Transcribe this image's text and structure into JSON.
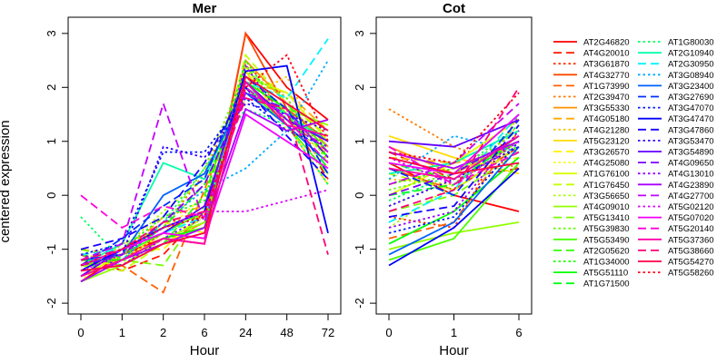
{
  "chart_data": {
    "type": "line",
    "ylabel": "centered expression",
    "panels": [
      {
        "title": "Mer",
        "xlabel": "Hour",
        "x": [
          "0",
          "1",
          "2",
          "6",
          "24",
          "48",
          "72"
        ],
        "ylim": [
          -2.2,
          3.3
        ],
        "yticks": [
          -2,
          -1,
          0,
          1,
          2,
          3
        ]
      },
      {
        "title": "Cot",
        "xlabel": "Hour",
        "x": [
          "0",
          "1",
          "6"
        ],
        "ylim": [
          -2.2,
          3.3
        ],
        "yticks": [
          -2,
          -1,
          0,
          1,
          2,
          3
        ]
      }
    ],
    "legend_position": "right",
    "series": [
      {
        "name": "AT2G46820",
        "color": "#FF0000",
        "dash": "solid",
        "mer": [
          -1.6,
          -1.1,
          -0.8,
          -0.9,
          3.0,
          2.0,
          1.4
        ],
        "cot": [
          0.6,
          0.0,
          -0.3
        ]
      },
      {
        "name": "AT4G20010",
        "color": "#FF1800",
        "dash": "dashed",
        "mer": [
          -1.1,
          -1.4,
          -1.1,
          -0.3,
          2.2,
          1.5,
          0.3
        ],
        "cot": [
          0.8,
          0.3,
          0.5
        ]
      },
      {
        "name": "AT3G61870",
        "color": "#FF3000",
        "dash": "dotted",
        "mer": [
          -1.3,
          -1.1,
          -0.5,
          -0.4,
          2.4,
          1.8,
          0.7
        ],
        "cot": [
          -0.4,
          -0.6,
          1.5
        ]
      },
      {
        "name": "AT4G32770",
        "color": "#FF4900",
        "dash": "solid",
        "mer": [
          -1.5,
          -1.2,
          -0.7,
          -0.8,
          3.0,
          1.6,
          1.0
        ],
        "cot": [
          0.5,
          0.1,
          0.9
        ]
      },
      {
        "name": "AT1G73990",
        "color": "#FF6100",
        "dash": "dashed",
        "mer": [
          -1.2,
          -1.3,
          -1.8,
          0.1,
          2.0,
          1.4,
          0.8
        ],
        "cot": [
          -0.8,
          -0.5,
          1.2
        ]
      },
      {
        "name": "AT2G39470",
        "color": "#FF7900",
        "dash": "dotted",
        "mer": [
          -1.4,
          -1.0,
          -0.6,
          0.4,
          2.2,
          1.6,
          0.4
        ],
        "cot": [
          1.6,
          0.9,
          0.5
        ]
      },
      {
        "name": "AT3G55330",
        "color": "#FF9200",
        "dash": "solid",
        "mer": [
          -1.3,
          -1.2,
          -0.9,
          -0.5,
          2.5,
          1.7,
          0.9
        ],
        "cot": [
          0.9,
          0.4,
          1.0
        ]
      },
      {
        "name": "AT4G05180",
        "color": "#FFAA00",
        "dash": "dashed",
        "mer": [
          -1.0,
          -1.1,
          -0.4,
          -0.2,
          2.1,
          1.9,
          1.2
        ],
        "cot": [
          0.7,
          0.6,
          0.8
        ]
      },
      {
        "name": "AT4G21280",
        "color": "#FFC200",
        "dash": "dotted",
        "mer": [
          -1.6,
          -0.9,
          -0.6,
          0.2,
          1.8,
          2.2,
          0.6
        ],
        "cot": [
          0.3,
          0.2,
          1.3
        ]
      },
      {
        "name": "AT5G23120",
        "color": "#FFDB00",
        "dash": "solid",
        "mer": [
          -1.2,
          -1.3,
          -0.8,
          -0.6,
          2.3,
          1.3,
          0.2
        ],
        "cot": [
          1.1,
          0.7,
          0.4
        ]
      },
      {
        "name": "AT3G26570",
        "color": "#FFF300",
        "dash": "dashed",
        "mer": [
          -1.4,
          -1.0,
          -1.0,
          -0.3,
          2.0,
          1.5,
          0.5
        ],
        "cot": [
          0.2,
          0.5,
          0.7
        ]
      },
      {
        "name": "AT4G25080",
        "color": "#F3FF00",
        "dash": "dotted",
        "mer": [
          -1.1,
          -1.2,
          -0.7,
          0.0,
          2.4,
          1.2,
          0.8
        ],
        "cot": [
          -0.2,
          0.3,
          1.1
        ]
      },
      {
        "name": "AT1G76100",
        "color": "#DBFF00",
        "dash": "solid",
        "mer": [
          -1.5,
          -1.1,
          -0.5,
          -0.7,
          2.2,
          1.9,
          1.0
        ],
        "cot": [
          0.0,
          0.6,
          1.4
        ]
      },
      {
        "name": "AT1G76450",
        "color": "#C2FF00",
        "dash": "dashed",
        "mer": [
          -1.3,
          -1.4,
          -0.9,
          -0.4,
          2.6,
          1.7,
          1.1
        ],
        "cot": [
          0.4,
          0.1,
          0.9
        ]
      },
      {
        "name": "AT3G56650",
        "color": "#AAFF00",
        "dash": "dotted",
        "mer": [
          -1.2,
          -1.0,
          -0.3,
          0.3,
          1.9,
          1.4,
          0.7
        ],
        "cot": [
          -0.6,
          0.2,
          1.0
        ]
      },
      {
        "name": "AT4G09010",
        "color": "#92FF00",
        "dash": "solid",
        "mer": [
          -1.6,
          -1.3,
          -0.8,
          -0.5,
          2.1,
          1.6,
          1.3
        ],
        "cot": [
          -1.0,
          -0.7,
          -0.5
        ]
      },
      {
        "name": "AT5G13410",
        "color": "#79FF00",
        "dash": "dashed",
        "mer": [
          -1.0,
          -1.2,
          -1.3,
          -0.2,
          2.4,
          1.5,
          0.9
        ],
        "cot": [
          -0.3,
          0.0,
          0.8
        ]
      },
      {
        "name": "AT5G39830",
        "color": "#61FF00",
        "dash": "dotted",
        "mer": [
          -1.4,
          -0.9,
          -0.6,
          0.5,
          2.3,
          1.8,
          0.6
        ],
        "cot": [
          0.1,
          0.4,
          1.2
        ]
      },
      {
        "name": "AT5G53490",
        "color": "#49FF00",
        "dash": "solid",
        "mer": [
          -1.3,
          -1.1,
          -0.7,
          -0.3,
          2.0,
          1.3,
          0.4
        ],
        "cot": [
          -1.2,
          -0.8,
          0.6
        ]
      },
      {
        "name": "AT2G05620",
        "color": "#30FF00",
        "dash": "dashed",
        "mer": [
          -1.1,
          -1.3,
          -0.9,
          0.0,
          2.2,
          1.7,
          0.8
        ],
        "cot": [
          0.6,
          0.3,
          1.0
        ]
      },
      {
        "name": "AT1G34000",
        "color": "#18FF00",
        "dash": "dotted",
        "mer": [
          -1.5,
          -1.0,
          -0.4,
          -0.1,
          2.5,
          1.4,
          1.1
        ],
        "cot": [
          0.2,
          0.5,
          0.9
        ]
      },
      {
        "name": "AT5G51110",
        "color": "#00FF00",
        "dash": "solid",
        "mer": [
          -1.2,
          -1.2,
          -0.8,
          -0.6,
          2.1,
          1.6,
          0.7
        ],
        "cot": [
          -0.9,
          -0.3,
          0.7
        ]
      },
      {
        "name": "AT1G71500",
        "color": "#00FF18",
        "dash": "dashed",
        "mer": [
          -1.4,
          -1.1,
          -0.6,
          0.2,
          1.9,
          1.5,
          0.5
        ],
        "cot": [
          0.0,
          0.2,
          1.1
        ]
      },
      {
        "name": "AT1G80030",
        "color": "#00FF61",
        "dash": "dotted",
        "mer": [
          -0.4,
          -1.2,
          -0.5,
          0.5,
          1.6,
          1.3,
          0.2
        ],
        "cot": [
          -0.1,
          0.4,
          1.3
        ]
      },
      {
        "name": "AT2G10940",
        "color": "#00FFAA",
        "dash": "solid",
        "mer": [
          -1.3,
          -0.9,
          0.6,
          0.3,
          2.0,
          1.5,
          1.0
        ],
        "cot": [
          0.4,
          0.6,
          1.2
        ]
      },
      {
        "name": "AT2G30950",
        "color": "#00F3FF",
        "dash": "dashed",
        "mer": [
          -1.1,
          -1.0,
          -0.7,
          -0.4,
          2.1,
          1.8,
          2.9
        ],
        "cot": [
          -0.5,
          0.1,
          1.5
        ]
      },
      {
        "name": "AT3G08940",
        "color": "#00AAFF",
        "dash": "dotted",
        "mer": [
          -1.6,
          -1.2,
          -0.5,
          0.1,
          0.5,
          1.2,
          2.5
        ],
        "cot": [
          0.3,
          1.1,
          0.8
        ]
      },
      {
        "name": "AT3G23400",
        "color": "#0061FF",
        "dash": "solid",
        "mer": [
          -1.2,
          -1.1,
          0.0,
          0.4,
          1.9,
          1.3,
          0.6
        ],
        "cot": [
          -1.1,
          -0.5,
          0.9
        ]
      },
      {
        "name": "AT3G27690",
        "color": "#0030FF",
        "dash": "dashed",
        "mer": [
          -1.3,
          -0.8,
          -0.2,
          0.3,
          2.2,
          1.6,
          0.4
        ],
        "cot": [
          0.5,
          0.0,
          1.4
        ]
      },
      {
        "name": "AT3G47070",
        "color": "#0018FF",
        "dash": "dotted",
        "mer": [
          -1.1,
          -0.9,
          0.8,
          0.8,
          1.8,
          1.2,
          0.9
        ],
        "cot": [
          -0.7,
          -0.4,
          1.0
        ]
      },
      {
        "name": "AT3G47470",
        "color": "#0000FF",
        "dash": "solid",
        "mer": [
          -1.4,
          -1.0,
          -0.6,
          -0.3,
          2.3,
          2.4,
          -0.7
        ],
        "cot": [
          -1.3,
          -0.6,
          0.5
        ]
      },
      {
        "name": "AT3G47860",
        "color": "#1800FF",
        "dash": "dashed",
        "mer": [
          -1.0,
          -0.8,
          -0.4,
          0.6,
          2.0,
          1.1,
          0.3
        ],
        "cot": [
          -0.4,
          -0.2,
          1.3
        ]
      },
      {
        "name": "AT3G53470",
        "color": "#3000FF",
        "dash": "dotted",
        "mer": [
          -1.2,
          -1.1,
          0.9,
          0.7,
          1.7,
          1.5,
          1.2
        ],
        "cot": [
          -0.2,
          0.3,
          0.9
        ]
      },
      {
        "name": "AT3G54890",
        "color": "#6100FF",
        "dash": "solid",
        "mer": [
          -1.5,
          -1.0,
          -0.7,
          -0.2,
          2.1,
          1.4,
          1.0
        ],
        "cot": [
          1.0,
          0.9,
          1.4
        ]
      },
      {
        "name": "AT4G09650",
        "color": "#7900FF",
        "dash": "dashed",
        "mer": [
          -1.3,
          -1.1,
          -0.5,
          0.2,
          1.9,
          1.6,
          0.7
        ],
        "cot": [
          0.0,
          0.4,
          1.1
        ]
      },
      {
        "name": "AT4G13010",
        "color": "#9200FF",
        "dash": "dotted",
        "mer": [
          -1.1,
          -1.3,
          -0.8,
          -0.4,
          2.4,
          1.3,
          0.9
        ],
        "cot": [
          -0.6,
          -0.3,
          1.2
        ]
      },
      {
        "name": "AT4G23890",
        "color": "#AA00FF",
        "dash": "solid",
        "mer": [
          -1.6,
          -1.2,
          -0.9,
          -0.6,
          1.6,
          1.2,
          1.4
        ],
        "cot": [
          0.8,
          0.5,
          1.0
        ]
      },
      {
        "name": "AT4G27700",
        "color": "#C200FF",
        "dash": "dashed",
        "mer": [
          -1.2,
          -0.9,
          1.7,
          -0.5,
          1.9,
          1.5,
          0.8
        ],
        "cot": [
          0.2,
          0.6,
          1.7
        ]
      },
      {
        "name": "AT5G02120",
        "color": "#DB00FF",
        "dash": "dotted",
        "mer": [
          -1.4,
          -1.1,
          -0.6,
          -0.3,
          -0.3,
          -0.1,
          0.1
        ],
        "cot": [
          0.7,
          0.2,
          1.0
        ]
      },
      {
        "name": "AT5G07020",
        "color": "#F300FF",
        "dash": "solid",
        "mer": [
          -1.3,
          -1.0,
          -0.7,
          -0.8,
          1.5,
          1.0,
          0.5
        ],
        "cot": [
          0.6,
          0.4,
          1.5
        ]
      },
      {
        "name": "AT5G20140",
        "color": "#FF00DB",
        "dash": "dashed",
        "mer": [
          0.0,
          -0.6,
          -0.2,
          -0.4,
          2.0,
          1.4,
          0.6
        ],
        "cot": [
          0.9,
          0.2,
          0.8
        ]
      },
      {
        "name": "AT5G37360",
        "color": "#FF00AA",
        "dash": "solid",
        "mer": [
          -1.5,
          -1.2,
          -0.8,
          -0.9,
          2.1,
          1.3,
          1.1
        ],
        "cot": [
          0.5,
          0.3,
          1.1
        ]
      },
      {
        "name": "AT5G38660",
        "color": "#FF0079",
        "dash": "dashed",
        "mer": [
          -1.2,
          -1.0,
          -0.5,
          -0.3,
          1.8,
          1.6,
          -1.1
        ],
        "cot": [
          -0.3,
          0.1,
          2.0
        ]
      },
      {
        "name": "AT5G54270",
        "color": "#FF0049",
        "dash": "solid",
        "mer": [
          -1.4,
          -1.3,
          -0.9,
          -0.7,
          2.2,
          1.7,
          1.2
        ],
        "cot": [
          0.7,
          0.4,
          0.6
        ]
      },
      {
        "name": "AT5G58260",
        "color": "#FF0018",
        "dash": "dotted",
        "mer": [
          -1.3,
          -1.0,
          -0.6,
          -0.4,
          2.0,
          2.6,
          1.0
        ],
        "cot": [
          0.8,
          0.6,
          1.9
        ]
      }
    ]
  }
}
